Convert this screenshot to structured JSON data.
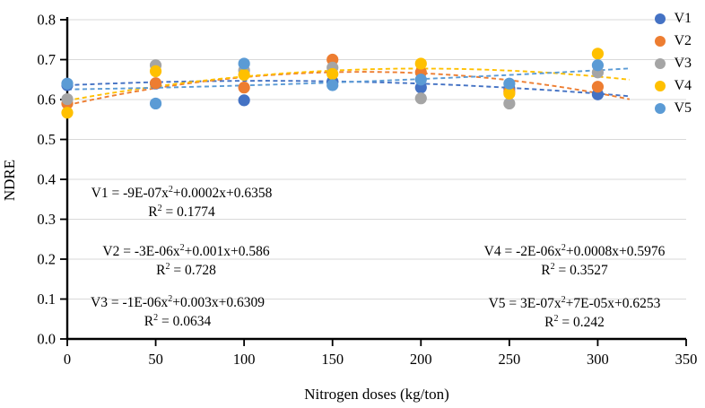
{
  "chart_data": {
    "type": "scatter",
    "title": "",
    "xlabel": "Nitrogen doses (kg/ton)",
    "ylabel": "NDRE",
    "xlim": [
      0,
      350
    ],
    "ylim": [
      0,
      0.8
    ],
    "xtick_labels": [
      "0",
      "50",
      "100",
      "150",
      "200",
      "250",
      "300",
      "350"
    ],
    "ytick_labels": [
      "0.0",
      "0.1",
      "0.2",
      "0.3",
      "0.4",
      "0.5",
      "0.6",
      "0.7",
      "0.8"
    ],
    "grid": true,
    "gridline_color": "#d9d9d9",
    "axis_color": "#000000",
    "legend_position": "top-right",
    "x": [
      0,
      50,
      100,
      150,
      200,
      250,
      300
    ],
    "series": [
      {
        "name": "V1",
        "color": "#4472C4",
        "values": [
          0.636,
          0.64,
          0.598,
          0.645,
          0.63,
          0.628,
          0.613
        ],
        "trend": {
          "a": -9e-07,
          "b": 0.0002,
          "c": 0.6358,
          "visible": true
        },
        "eq_pre": "V1 = -9E-07x",
        "eq_sup": "2",
        "eq_post": "+0.0002x+0.6358",
        "r2_pre": "R",
        "r2_sup": "2",
        "r2_post": " = 0.1774"
      },
      {
        "name": "V2",
        "color": "#ED7D31",
        "values": [
          0.59,
          0.641,
          0.63,
          0.7,
          0.668,
          0.62,
          0.632
        ],
        "trend": {
          "a": -3e-06,
          "b": 0.001,
          "c": 0.586,
          "visible": true
        },
        "eq_pre": "V2 = -3E-06x",
        "eq_sup": "2",
        "eq_post": "+0.001x+0.586",
        "r2_pre": "R",
        "r2_sup": "2",
        "r2_post": " = 0.728"
      },
      {
        "name": "V3",
        "color": "#A5A5A5",
        "values": [
          0.601,
          0.686,
          0.673,
          0.68,
          0.603,
          0.59,
          0.668
        ],
        "trend": {
          "a": -1e-06,
          "b": 0.003,
          "c": 0.6309,
          "visible": false
        },
        "eq_pre": "V3 = -1E-06x",
        "eq_sup": "2",
        "eq_post": "+0.003x+0.6309",
        "r2_pre": "R",
        "r2_sup": "2",
        "r2_post": " = 0.0634"
      },
      {
        "name": "V4",
        "color": "#FFC000",
        "values": [
          0.567,
          0.671,
          0.662,
          0.664,
          0.69,
          0.615,
          0.715
        ],
        "trend": {
          "a": -2e-06,
          "b": 0.0008,
          "c": 0.5976,
          "visible": true
        },
        "eq_pre": "V4 = -2E-06x",
        "eq_sup": "2",
        "eq_post": "+0.0008x+0.5976",
        "r2_pre": "R",
        "r2_sup": "2",
        "r2_post": " = 0.3527"
      },
      {
        "name": "V5",
        "color": "#5B9BD5",
        "values": [
          0.64,
          0.59,
          0.69,
          0.636,
          0.65,
          0.64,
          0.686
        ],
        "trend": {
          "a": 3e-07,
          "b": 7e-05,
          "c": 0.6253,
          "visible": true
        },
        "eq_pre": "V5 = 3E-07x",
        "eq_sup": "2",
        "eq_post": "+7E-05x+0.6253",
        "r2_pre": "R",
        "r2_sup": "2",
        "r2_post": " = 0.242"
      }
    ]
  }
}
